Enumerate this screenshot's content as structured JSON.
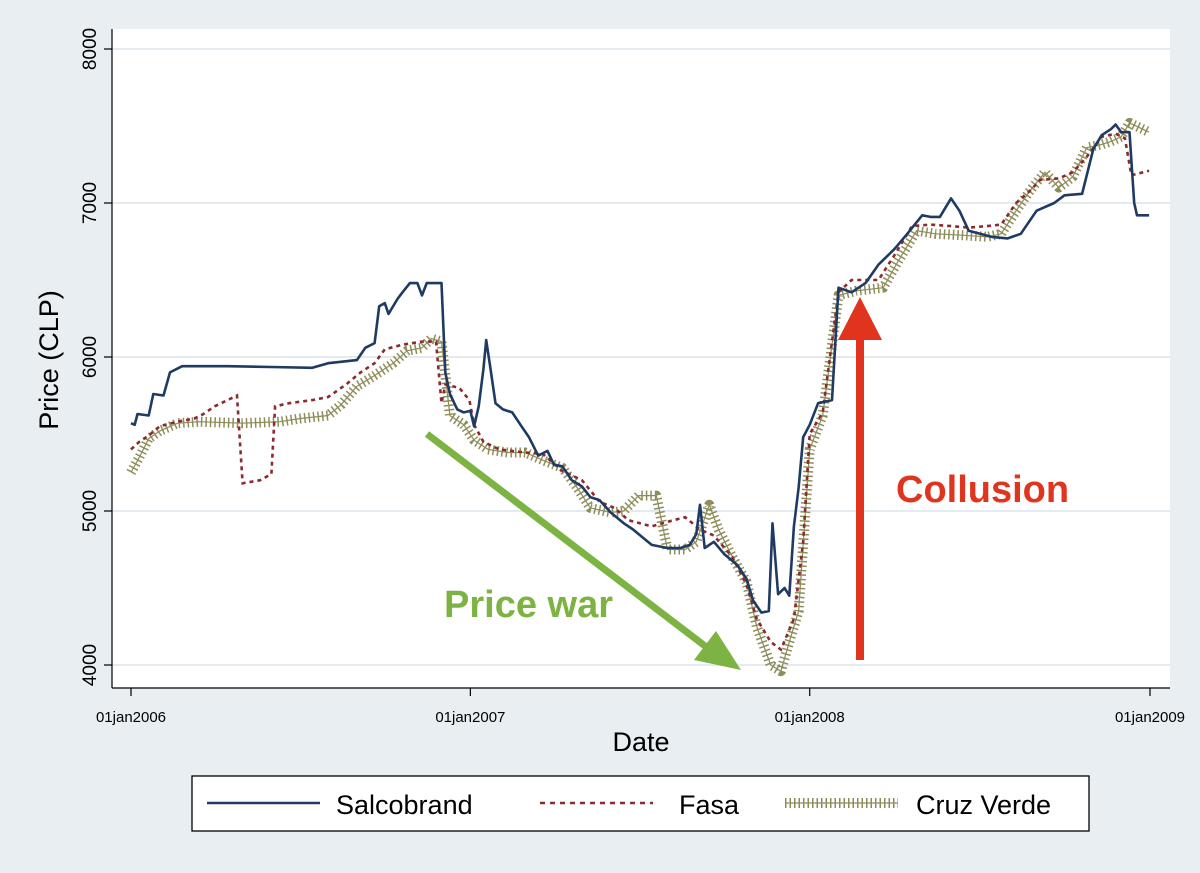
{
  "chart_data": {
    "type": "line",
    "xlabel": "Date",
    "ylabel": "Price (CLP)",
    "xlim": [
      "2006-01-01",
      "2009-01-01"
    ],
    "ylim": [
      4000,
      8000
    ],
    "grid": true,
    "legend_placement": "bottom",
    "x_ticks": [
      {
        "date": "2006-01-01",
        "label": "01jan2006"
      },
      {
        "date": "2007-01-01",
        "label": "01jan2007"
      },
      {
        "date": "2008-01-01",
        "label": "01jan2008"
      },
      {
        "date": "2009-01-01",
        "label": "01jan2009"
      }
    ],
    "y_ticks": [
      {
        "value": 4000,
        "label": "4000"
      },
      {
        "value": 5000,
        "label": "5000"
      },
      {
        "value": 6000,
        "label": "6000"
      },
      {
        "value": 7000,
        "label": "7000"
      },
      {
        "value": 8000,
        "label": "8000"
      }
    ],
    "series": [
      {
        "name": "Salcobrand",
        "color": "#1f3b63",
        "style": "solid",
        "points": [
          [
            "2006-01-01",
            5570
          ],
          [
            "2006-01-05",
            5560
          ],
          [
            "2006-01-08",
            5630
          ],
          [
            "2006-01-20",
            5620
          ],
          [
            "2006-01-25",
            5760
          ],
          [
            "2006-02-05",
            5750
          ],
          [
            "2006-02-12",
            5900
          ],
          [
            "2006-02-25",
            5940
          ],
          [
            "2006-04-15",
            5940
          ],
          [
            "2006-06-01",
            5935
          ],
          [
            "2006-07-15",
            5930
          ],
          [
            "2006-08-01",
            5960
          ],
          [
            "2006-09-01",
            5980
          ],
          [
            "2006-09-10",
            6060
          ],
          [
            "2006-09-20",
            6090
          ],
          [
            "2006-09-25",
            6330
          ],
          [
            "2006-10-01",
            6350
          ],
          [
            "2006-10-05",
            6280
          ],
          [
            "2006-10-15",
            6380
          ],
          [
            "2006-10-20",
            6420
          ],
          [
            "2006-10-28",
            6480
          ],
          [
            "2006-11-05",
            6480
          ],
          [
            "2006-11-10",
            6400
          ],
          [
            "2006-11-15",
            6480
          ],
          [
            "2006-11-25",
            6480
          ],
          [
            "2006-12-01",
            6480
          ],
          [
            "2006-12-05",
            5900
          ],
          [
            "2006-12-10",
            5760
          ],
          [
            "2006-12-18",
            5660
          ],
          [
            "2006-12-25",
            5640
          ],
          [
            "2007-01-01",
            5650
          ],
          [
            "2007-01-05",
            5550
          ],
          [
            "2007-01-10",
            5680
          ],
          [
            "2007-01-15",
            5920
          ],
          [
            "2007-01-18",
            6110
          ],
          [
            "2007-01-22",
            5950
          ],
          [
            "2007-01-28",
            5700
          ],
          [
            "2007-02-05",
            5660
          ],
          [
            "2007-02-15",
            5640
          ],
          [
            "2007-02-25",
            5550
          ],
          [
            "2007-03-05",
            5480
          ],
          [
            "2007-03-15",
            5360
          ],
          [
            "2007-03-25",
            5390
          ],
          [
            "2007-04-01",
            5300
          ],
          [
            "2007-04-10",
            5290
          ],
          [
            "2007-04-20",
            5200
          ],
          [
            "2007-05-01",
            5160
          ],
          [
            "2007-05-10",
            5090
          ],
          [
            "2007-05-20",
            5070
          ],
          [
            "2007-06-01",
            4990
          ],
          [
            "2007-06-15",
            4920
          ],
          [
            "2007-06-25",
            4880
          ],
          [
            "2007-07-05",
            4830
          ],
          [
            "2007-07-15",
            4780
          ],
          [
            "2007-08-01",
            4760
          ],
          [
            "2007-08-15",
            4760
          ],
          [
            "2007-08-25",
            4780
          ],
          [
            "2007-09-01",
            4850
          ],
          [
            "2007-09-05",
            5040
          ],
          [
            "2007-09-10",
            4760
          ],
          [
            "2007-09-20",
            4800
          ],
          [
            "2007-10-01",
            4720
          ],
          [
            "2007-10-15",
            4650
          ],
          [
            "2007-10-25",
            4560
          ],
          [
            "2007-11-01",
            4420
          ],
          [
            "2007-11-10",
            4340
          ],
          [
            "2007-11-18",
            4350
          ],
          [
            "2007-11-22",
            4920
          ],
          [
            "2007-11-28",
            4460
          ],
          [
            "2007-12-05",
            4500
          ],
          [
            "2007-12-10",
            4450
          ],
          [
            "2007-12-15",
            4900
          ],
          [
            "2007-12-20",
            5150
          ],
          [
            "2007-12-25",
            5480
          ],
          [
            "2008-01-01",
            5560
          ],
          [
            "2008-01-10",
            5700
          ],
          [
            "2008-01-25",
            5720
          ],
          [
            "2008-02-01",
            6450
          ],
          [
            "2008-02-15",
            6420
          ],
          [
            "2008-03-01",
            6480
          ],
          [
            "2008-03-15",
            6600
          ],
          [
            "2008-04-01",
            6700
          ],
          [
            "2008-04-15",
            6800
          ],
          [
            "2008-05-01",
            6920
          ],
          [
            "2008-05-10",
            6910
          ],
          [
            "2008-05-20",
            6910
          ],
          [
            "2008-06-01",
            7030
          ],
          [
            "2008-06-10",
            6950
          ],
          [
            "2008-06-20",
            6820
          ],
          [
            "2008-07-15",
            6780
          ],
          [
            "2008-08-01",
            6770
          ],
          [
            "2008-08-15",
            6800
          ],
          [
            "2008-09-01",
            6950
          ],
          [
            "2008-09-20",
            7000
          ],
          [
            "2008-10-01",
            7050
          ],
          [
            "2008-10-20",
            7060
          ],
          [
            "2008-11-01",
            7350
          ],
          [
            "2008-11-10",
            7440
          ],
          [
            "2008-11-20",
            7480
          ],
          [
            "2008-11-25",
            7510
          ],
          [
            "2008-12-01",
            7460
          ],
          [
            "2008-12-10",
            7460
          ],
          [
            "2008-12-15",
            7000
          ],
          [
            "2008-12-18",
            6920
          ],
          [
            "2008-12-31",
            6920
          ]
        ]
      },
      {
        "name": "Fasa",
        "color": "#8b2a2f",
        "style": "dashed",
        "points": [
          [
            "2006-01-01",
            5400
          ],
          [
            "2006-01-10",
            5450
          ],
          [
            "2006-01-20",
            5490
          ],
          [
            "2006-02-01",
            5550
          ],
          [
            "2006-02-20",
            5580
          ],
          [
            "2006-03-10",
            5600
          ],
          [
            "2006-03-20",
            5630
          ],
          [
            "2006-04-01",
            5680
          ],
          [
            "2006-04-15",
            5720
          ],
          [
            "2006-04-25",
            5750
          ],
          [
            "2006-05-01",
            5180
          ],
          [
            "2006-05-20",
            5200
          ],
          [
            "2006-06-01",
            5240
          ],
          [
            "2006-06-05",
            5680
          ],
          [
            "2006-06-20",
            5700
          ],
          [
            "2006-07-15",
            5720
          ],
          [
            "2006-08-01",
            5740
          ],
          [
            "2006-08-20",
            5820
          ],
          [
            "2006-09-05",
            5900
          ],
          [
            "2006-09-20",
            5960
          ],
          [
            "2006-10-01",
            6050
          ],
          [
            "2006-10-20",
            6080
          ],
          [
            "2006-11-10",
            6100
          ],
          [
            "2006-11-25",
            6100
          ],
          [
            "2006-12-01",
            5700
          ],
          [
            "2006-12-05",
            5820
          ],
          [
            "2006-12-20",
            5800
          ],
          [
            "2006-12-31",
            5720
          ],
          [
            "2007-01-05",
            5560
          ],
          [
            "2007-01-15",
            5450
          ],
          [
            "2007-02-01",
            5400
          ],
          [
            "2007-03-01",
            5380
          ],
          [
            "2007-03-20",
            5370
          ],
          [
            "2007-04-10",
            5260
          ],
          [
            "2007-05-01",
            5200
          ],
          [
            "2007-05-20",
            5060
          ],
          [
            "2007-06-05",
            5020
          ],
          [
            "2007-06-20",
            4940
          ],
          [
            "2007-07-15",
            4900
          ],
          [
            "2007-08-01",
            4930
          ],
          [
            "2007-08-20",
            4960
          ],
          [
            "2007-09-05",
            4880
          ],
          [
            "2007-09-20",
            4840
          ],
          [
            "2007-10-10",
            4700
          ],
          [
            "2007-10-25",
            4520
          ],
          [
            "2007-11-05",
            4300
          ],
          [
            "2007-11-20",
            4150
          ],
          [
            "2007-12-01",
            4100
          ],
          [
            "2007-12-15",
            4300
          ],
          [
            "2007-12-25",
            4800
          ],
          [
            "2008-01-01",
            5500
          ],
          [
            "2008-01-15",
            5640
          ],
          [
            "2008-02-01",
            6420
          ],
          [
            "2008-02-15",
            6500
          ],
          [
            "2008-03-15",
            6500
          ],
          [
            "2008-04-01",
            6660
          ],
          [
            "2008-04-20",
            6850
          ],
          [
            "2008-05-10",
            6860
          ],
          [
            "2008-06-01",
            6850
          ],
          [
            "2008-06-20",
            6840
          ],
          [
            "2008-07-10",
            6850
          ],
          [
            "2008-07-25",
            6860
          ],
          [
            "2008-08-10",
            7000
          ],
          [
            "2008-08-25",
            7080
          ],
          [
            "2008-09-05",
            7150
          ],
          [
            "2008-09-25",
            7160
          ],
          [
            "2008-10-10",
            7200
          ],
          [
            "2008-10-25",
            7300
          ],
          [
            "2008-11-10",
            7430
          ],
          [
            "2008-11-25",
            7450
          ],
          [
            "2008-12-05",
            7420
          ],
          [
            "2008-12-12",
            7180
          ],
          [
            "2008-12-31",
            7210
          ]
        ]
      },
      {
        "name": "Cruz Verde",
        "color": "#8e8d5a",
        "style": "hatched",
        "points": [
          [
            "2006-01-01",
            5250
          ],
          [
            "2006-01-10",
            5350
          ],
          [
            "2006-01-20",
            5470
          ],
          [
            "2006-02-01",
            5520
          ],
          [
            "2006-02-20",
            5570
          ],
          [
            "2006-03-15",
            5580
          ],
          [
            "2006-05-01",
            5570
          ],
          [
            "2006-06-10",
            5580
          ],
          [
            "2006-07-01",
            5600
          ],
          [
            "2006-08-01",
            5620
          ],
          [
            "2006-08-15",
            5690
          ],
          [
            "2006-09-01",
            5810
          ],
          [
            "2006-09-20",
            5880
          ],
          [
            "2006-10-10",
            5960
          ],
          [
            "2006-10-25",
            6040
          ],
          [
            "2006-11-10",
            6060
          ],
          [
            "2006-11-20",
            6120
          ],
          [
            "2006-12-01",
            6100
          ],
          [
            "2006-12-10",
            5620
          ],
          [
            "2006-12-25",
            5560
          ],
          [
            "2007-01-05",
            5460
          ],
          [
            "2007-01-20",
            5400
          ],
          [
            "2007-02-10",
            5380
          ],
          [
            "2007-03-01",
            5380
          ],
          [
            "2007-03-20",
            5330
          ],
          [
            "2007-04-10",
            5280
          ],
          [
            "2007-04-25",
            5160
          ],
          [
            "2007-05-10",
            5020
          ],
          [
            "2007-06-01",
            4990
          ],
          [
            "2007-06-15",
            5000
          ],
          [
            "2007-07-01",
            5100
          ],
          [
            "2007-07-20",
            5100
          ],
          [
            "2007-08-01",
            4750
          ],
          [
            "2007-08-20",
            4750
          ],
          [
            "2007-09-01",
            4800
          ],
          [
            "2007-09-15",
            5040
          ],
          [
            "2007-09-25",
            4880
          ],
          [
            "2007-10-10",
            4700
          ],
          [
            "2007-10-25",
            4540
          ],
          [
            "2007-11-05",
            4250
          ],
          [
            "2007-11-20",
            4000
          ],
          [
            "2007-12-01",
            3960
          ],
          [
            "2007-12-10",
            4150
          ],
          [
            "2007-12-20",
            4350
          ],
          [
            "2008-01-01",
            5400
          ],
          [
            "2008-01-15",
            5620
          ],
          [
            "2008-02-01",
            6400
          ],
          [
            "2008-02-20",
            6430
          ],
          [
            "2008-03-20",
            6450
          ],
          [
            "2008-04-05",
            6620
          ],
          [
            "2008-04-25",
            6820
          ],
          [
            "2008-05-15",
            6800
          ],
          [
            "2008-06-15",
            6790
          ],
          [
            "2008-07-10",
            6780
          ],
          [
            "2008-07-25",
            6800
          ],
          [
            "2008-08-10",
            6950
          ],
          [
            "2008-08-25",
            7080
          ],
          [
            "2008-09-10",
            7200
          ],
          [
            "2008-09-25",
            7100
          ],
          [
            "2008-10-10",
            7170
          ],
          [
            "2008-10-25",
            7360
          ],
          [
            "2008-11-10",
            7380
          ],
          [
            "2008-11-20",
            7400
          ],
          [
            "2008-12-01",
            7430
          ],
          [
            "2008-12-10",
            7520
          ],
          [
            "2008-12-31",
            7460
          ]
        ]
      }
    ],
    "annotations": [
      {
        "text": "Price war",
        "color": "#7cb342"
      },
      {
        "text": "Collusion",
        "color": "#e0341f"
      }
    ]
  }
}
